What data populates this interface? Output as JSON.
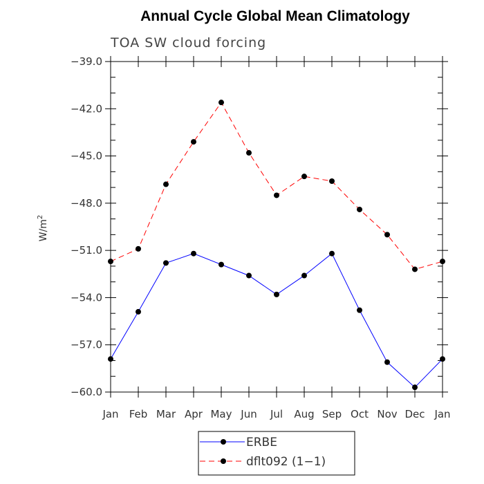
{
  "chart_data": {
    "type": "line",
    "title": "Annual Cycle Global Mean Climatology",
    "subtitle": "TOA SW cloud forcing",
    "xlabel": "",
    "ylabel": "W/m",
    "ylabel_superscript": "2",
    "categories": [
      "Jan",
      "Feb",
      "Mar",
      "Apr",
      "May",
      "Jun",
      "Jul",
      "Aug",
      "Sep",
      "Oct",
      "Nov",
      "Dec",
      "Jan"
    ],
    "ylim": [
      -60.0,
      -39.0
    ],
    "yticks": [
      -39.0,
      -42.0,
      -45.0,
      -48.0,
      -51.0,
      -54.0,
      -57.0,
      -60.0
    ],
    "ytick_labels": [
      "−39.0",
      "−42.0",
      "−45.0",
      "−48.0",
      "−51.0",
      "−54.0",
      "−57.0",
      "−60.0"
    ],
    "grid": false,
    "legend_position": "bottom",
    "series": [
      {
        "name": "ERBE",
        "color": "#0000ff",
        "dash": "solid",
        "values": [
          -57.9,
          -54.9,
          -51.8,
          -51.2,
          -51.9,
          -52.6,
          -53.8,
          -52.6,
          -51.2,
          -54.8,
          -58.1,
          -59.7,
          -57.9
        ]
      },
      {
        "name": "dflt092 (1−1)",
        "color": "#ff0000",
        "dash": "dashed",
        "values": [
          -51.7,
          -50.9,
          -46.8,
          -44.1,
          -41.6,
          -44.8,
          -47.5,
          -46.3,
          -46.6,
          -48.4,
          -50.0,
          -52.2,
          -51.7
        ]
      }
    ]
  }
}
